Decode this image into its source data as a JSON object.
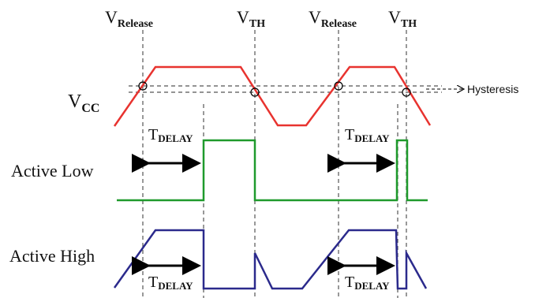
{
  "labels": {
    "v_release": {
      "main": "V",
      "sub": "Release"
    },
    "v_th": {
      "main": "V",
      "sub": "TH"
    },
    "vcc": {
      "main": "V",
      "sub": "CC"
    },
    "t_delay": {
      "main": "T",
      "sub": "DELAY"
    },
    "active_low": "Active Low",
    "active_high": "Active High",
    "hysteresis": "Hysteresis"
  },
  "colors": {
    "vcc": "#e8332f",
    "active_low": "#1f9a2c",
    "active_high": "#2b2a8c",
    "guides": "#555555",
    "arrows": "#000000"
  }
}
